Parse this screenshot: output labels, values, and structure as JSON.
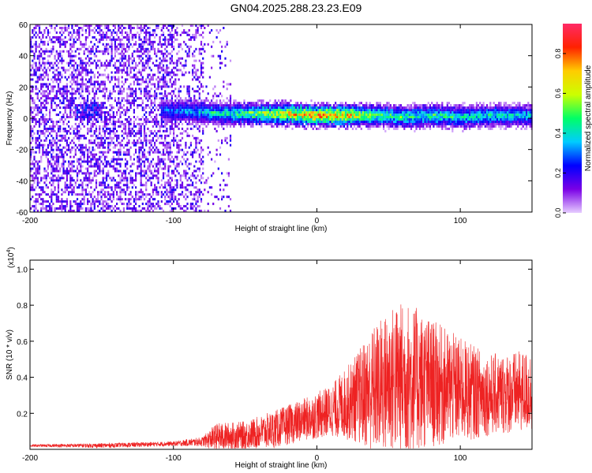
{
  "page_title": "GN04.2025.288.23.23.E09",
  "chart_data": [
    {
      "type": "heatmap",
      "xlabel": "Height of straight line (km)",
      "ylabel": "Frequency (Hz)",
      "xlim": [
        -200,
        150
      ],
      "ylim": [
        -60,
        60
      ],
      "xticks": [
        -200,
        -100,
        0,
        100
      ],
      "yticks": [
        -60,
        -40,
        -20,
        0,
        20,
        40,
        60
      ],
      "colorbar": {
        "label": "Normalized spectral amplitude",
        "range": [
          0,
          0.95
        ],
        "ticks": [
          0.0,
          0.2,
          0.4,
          0.6,
          0.8
        ],
        "colormap": [
          "#e6ccff",
          "#7a00e6",
          "#0000ff",
          "#00ccff",
          "#00ff66",
          "#ccff00",
          "#ffcc00",
          "#ff2200",
          "#ff2a66"
        ]
      },
      "ridge": {
        "description_points_x": [
          -100,
          -80,
          -60,
          -40,
          -20,
          0,
          20,
          40,
          60,
          80,
          100,
          120,
          150
        ],
        "center_freq": [
          4,
          3,
          2,
          2,
          2,
          1,
          1,
          1,
          0,
          1,
          0,
          1,
          1
        ],
        "peak_amplitude": [
          0.35,
          0.45,
          0.55,
          0.65,
          0.8,
          0.9,
          0.85,
          0.6,
          0.55,
          0.55,
          0.5,
          0.5,
          0.45
        ]
      },
      "noise_region_x": [
        -200,
        -60
      ]
    },
    {
      "type": "line",
      "xlabel": "Height of straight line (km)",
      "ylabel": "SNR (10 * v/v)",
      "yscale_label": "(x10",
      "yscale_exponent": "4",
      "xlim": [
        -200,
        150
      ],
      "ylim": [
        0,
        1.05
      ],
      "xticks": [
        -200,
        -100,
        0,
        100
      ],
      "yticks": [
        0.2,
        0.4,
        0.6,
        0.8,
        1.0
      ],
      "color": "#ee2222",
      "envelope": {
        "x": [
          -200,
          -150,
          -100,
          -80,
          -70,
          -50,
          -30,
          -10,
          10,
          25,
          40,
          55,
          65,
          80,
          100,
          120,
          150
        ],
        "baseline": [
          0.02,
          0.02,
          0.03,
          0.04,
          0.06,
          0.07,
          0.1,
          0.15,
          0.2,
          0.25,
          0.3,
          0.35,
          0.35,
          0.33,
          0.3,
          0.28,
          0.3
        ],
        "amplitude": [
          0.01,
          0.02,
          0.02,
          0.04,
          0.12,
          0.12,
          0.16,
          0.18,
          0.22,
          0.35,
          0.55,
          0.65,
          0.65,
          0.55,
          0.45,
          0.35,
          0.35
        ]
      }
    }
  ]
}
